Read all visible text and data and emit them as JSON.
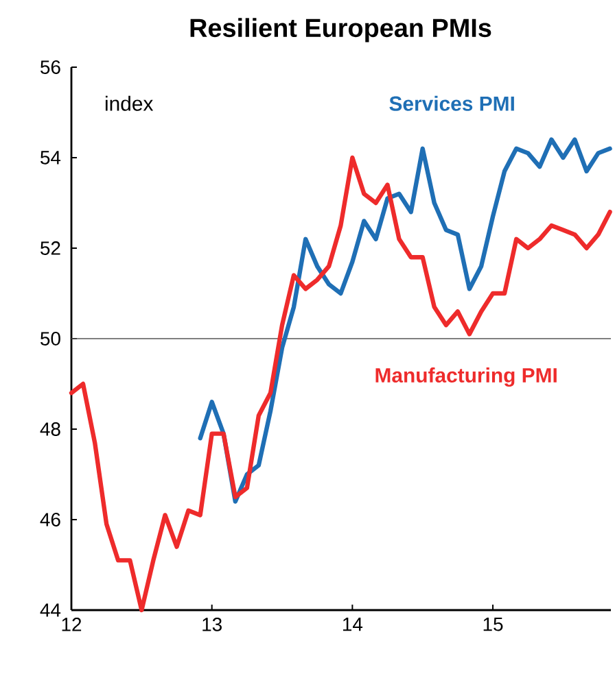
{
  "chart_data": {
    "type": "line",
    "title": "Resilient European PMIs",
    "annotations": [
      "index"
    ],
    "xlim": [
      12,
      15.84
    ],
    "xticks": [
      12,
      13,
      14,
      15
    ],
    "ylim": [
      44,
      56
    ],
    "yticks": [
      44,
      46,
      48,
      50,
      52,
      54,
      56
    ],
    "grid": false,
    "legend": false,
    "marker": "none",
    "line_style": "solid",
    "ref_lines": [
      {
        "axis": "y",
        "value": 50,
        "color": "#555555"
      }
    ],
    "series": [
      {
        "name": "Services PMI",
        "color": "#1f6fb5",
        "x": [
          12.917,
          13.0,
          13.083,
          13.167,
          13.25,
          13.333,
          13.417,
          13.5,
          13.583,
          13.667,
          13.75,
          13.833,
          13.917,
          14.0,
          14.083,
          14.167,
          14.25,
          14.333,
          14.417,
          14.5,
          14.583,
          14.667,
          14.75,
          14.833,
          14.917,
          15.0,
          15.083,
          15.167,
          15.25,
          15.333,
          15.417,
          15.5,
          15.583,
          15.667,
          15.75,
          15.833
        ],
        "values": [
          47.8,
          48.6,
          47.9,
          46.4,
          47.0,
          47.2,
          48.4,
          49.8,
          50.7,
          52.2,
          51.6,
          51.2,
          51.0,
          51.7,
          52.6,
          52.2,
          53.1,
          53.2,
          52.8,
          54.2,
          53.0,
          52.4,
          52.3,
          51.1,
          51.6,
          52.7,
          53.7,
          54.2,
          54.1,
          53.8,
          54.4,
          54.0,
          54.4,
          53.7,
          54.1,
          54.2
        ]
      },
      {
        "name": "Manufacturing PMI",
        "color": "#ee2b2b",
        "x": [
          12.0,
          12.083,
          12.167,
          12.25,
          12.333,
          12.417,
          12.5,
          12.583,
          12.667,
          12.75,
          12.833,
          12.917,
          13.0,
          13.083,
          13.167,
          13.25,
          13.333,
          13.417,
          13.5,
          13.583,
          13.667,
          13.75,
          13.833,
          13.917,
          14.0,
          14.083,
          14.167,
          14.25,
          14.333,
          14.417,
          14.5,
          14.583,
          14.667,
          14.75,
          14.833,
          14.917,
          15.0,
          15.083,
          15.167,
          15.25,
          15.333,
          15.417,
          15.5,
          15.583,
          15.667,
          15.75,
          15.833
        ],
        "values": [
          48.8,
          49.0,
          47.7,
          45.9,
          45.1,
          45.1,
          44.0,
          45.1,
          46.1,
          45.4,
          46.2,
          46.1,
          47.9,
          47.9,
          46.5,
          46.7,
          48.3,
          48.8,
          50.3,
          51.4,
          51.1,
          51.3,
          51.6,
          52.5,
          54.0,
          53.2,
          53.0,
          53.4,
          52.2,
          51.8,
          51.8,
          50.7,
          50.3,
          50.6,
          50.1,
          50.6,
          51.0,
          51.0,
          52.2,
          52.0,
          52.2,
          52.5,
          52.4,
          52.3,
          52.0,
          52.3,
          52.8
        ]
      }
    ]
  }
}
